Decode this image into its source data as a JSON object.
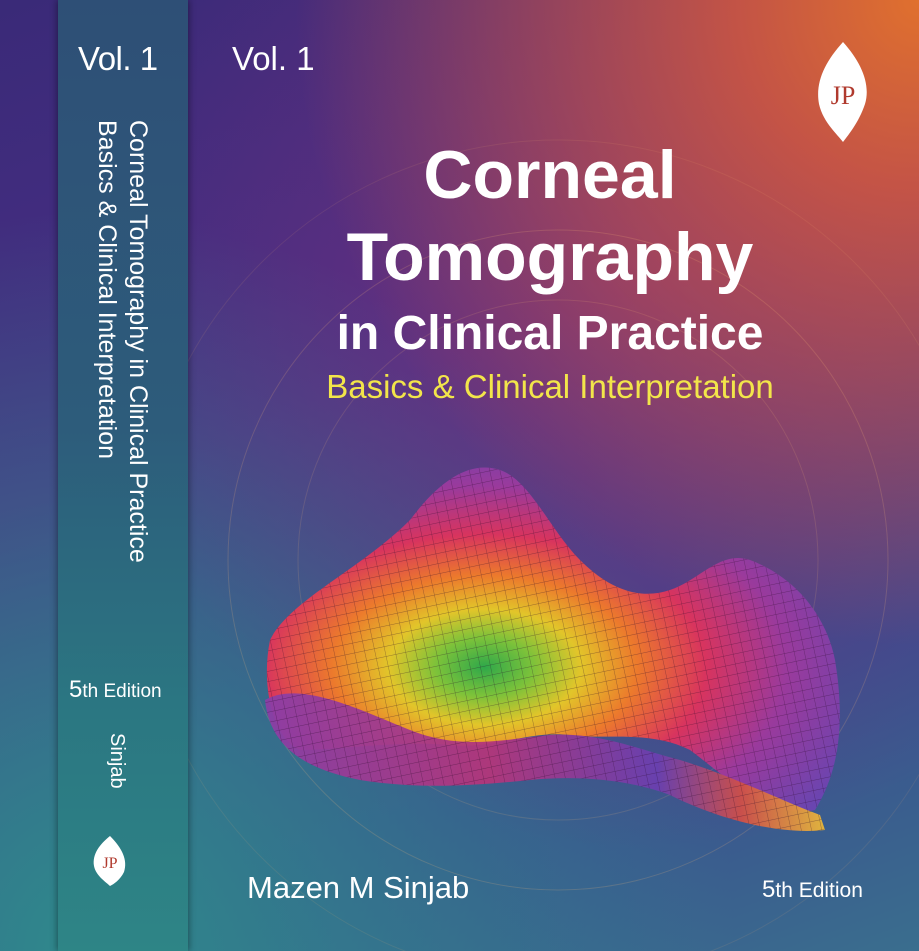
{
  "spine": {
    "volume": "Vol. 1",
    "title_line1": "Corneal Tomography in Clinical Practice",
    "title_line2": "Basics & Clinical Interpretation",
    "edition_num": "5",
    "edition_suffix": "th Edition",
    "author": "Sinjab",
    "logo_text": "JP"
  },
  "cover": {
    "volume": "Vol. 1",
    "title_line1": "Corneal",
    "title_line2": "Tomography",
    "title_line3": "in Clinical Practice",
    "subtitle": "Basics & Clinical Interpretation",
    "author": "Mazen M Sinjab",
    "edition_num": "5",
    "edition_suffix": "th Edition",
    "publisher_logo_text": "JP"
  },
  "colors": {
    "subtitle": "#f2e54a",
    "spine": "#2d5c7b",
    "accent_orange": "#e0702e"
  }
}
